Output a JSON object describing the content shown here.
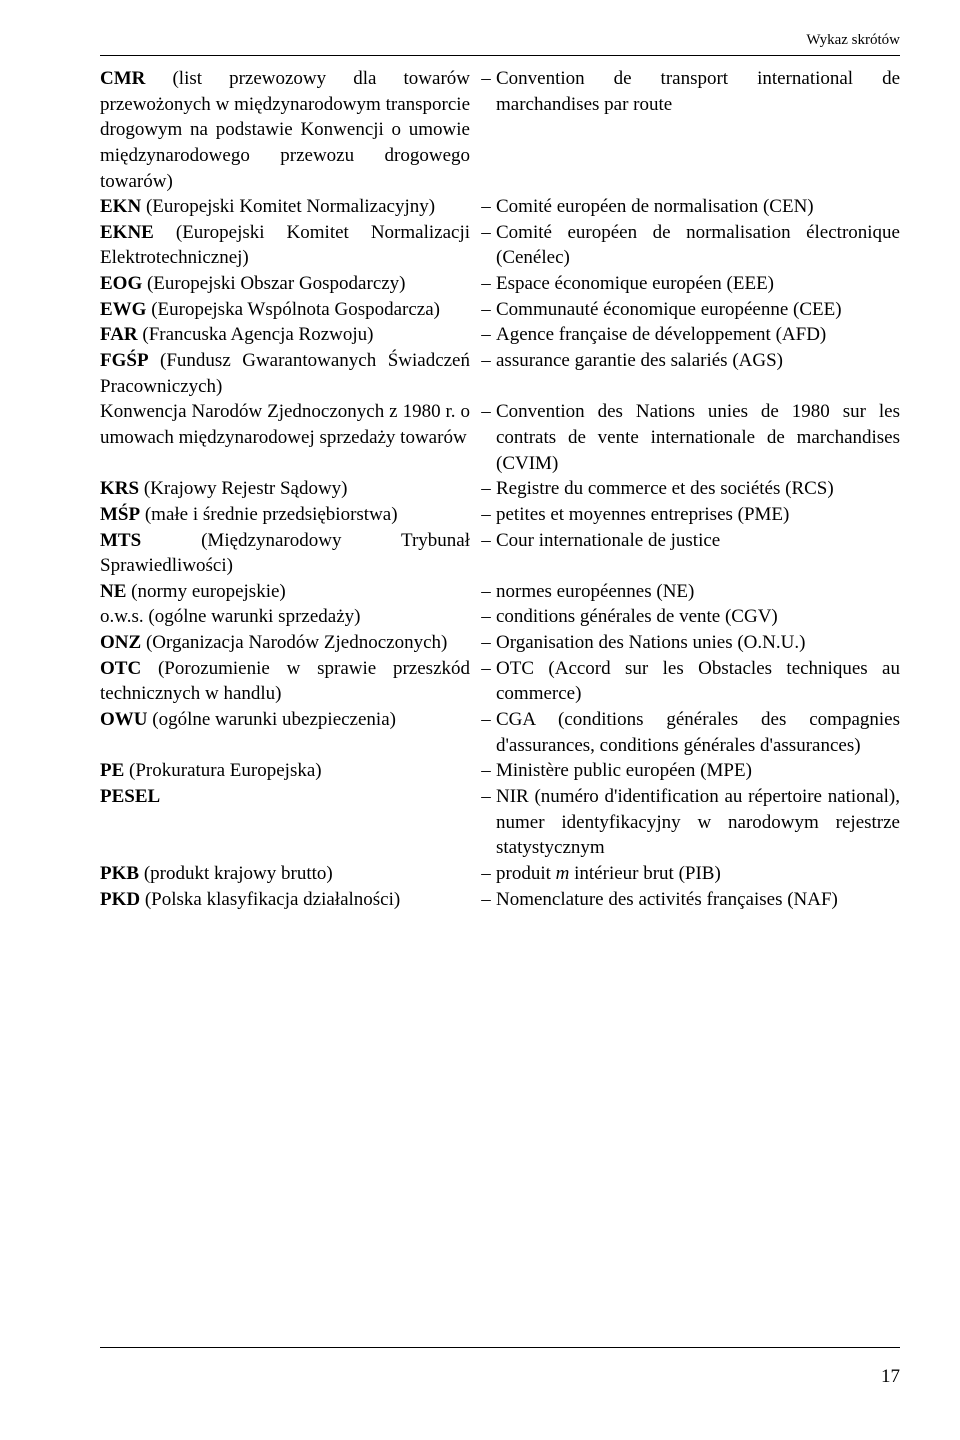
{
  "header": "Wykaz skrótów",
  "pageNumber": "17",
  "rows": [
    {
      "leftBold": "CMR",
      "leftRest": " (list przewozowy dla towarów przewożonych w międzynarodowym transporcie drogowym na podstawie Konwencji o umowie międzynarodowego przewozu drogowego towarów)",
      "right": "Convention de transport international de marchandises par route"
    },
    {
      "leftBold": "EKN",
      "leftRest": " (Europejski Komitet Normalizacyjny)",
      "right": "Comité européen de normalisation (CEN)"
    },
    {
      "leftBold": "EKNE",
      "leftRest": " (Europejski Komitet Normalizacji Elektrotechnicznej)",
      "right": "Comité européen de normalisation électronique (Cenélec)"
    },
    {
      "leftBold": "EOG",
      "leftRest": " (Europejski Obszar Gospodarczy)",
      "right": "Espace économique européen (EEE)"
    },
    {
      "leftBold": "EWG",
      "leftRest": " (Europejska Wspólnota Gospodarcza)",
      "right": "Communauté économique européenne (CEE)"
    },
    {
      "leftBold": "FAR",
      "leftRest": " (Francuska Agencja Rozwoju)",
      "right": "Agence française de développement (AFD)"
    },
    {
      "leftBold": "FGŚP",
      "leftRest": " (Fundusz Gwarantowanych Świadczeń Pracowniczych)",
      "right": "assurance garantie des salariés (AGS)"
    },
    {
      "leftBold": "",
      "leftRest": "Konwencja Narodów Zjednoczonych z 1980 r. o umowach międzynarodowej sprzedaży towarów",
      "right": "Convention des Nations unies de 1980 sur les contrats de vente internationale de marchandises (CVIM)"
    },
    {
      "leftBold": "KRS",
      "leftRest": " (Krajowy Rejestr Sądowy)",
      "right": "Registre du commerce et des sociétés (RCS)"
    },
    {
      "leftBold": "MŚP",
      "leftRest": " (małe i średnie przedsiębiorstwa)",
      "right": "petites et moyennes entreprises (PME)"
    },
    {
      "leftBold": "MTS",
      "leftRest": " (Międzynarodowy Trybunał Sprawiedliwości)",
      "right": "Cour internationale de justice"
    },
    {
      "leftBold": "NE",
      "leftRest": " (normy europejskie)",
      "right": "normes européennes (NE)"
    },
    {
      "leftBold": "",
      "leftRest": "o.w.s. (ogólne warunki sprzedaży)",
      "right": "conditions générales de vente (CGV)"
    },
    {
      "leftBold": "ONZ",
      "leftRest": " (Organizacja Narodów Zjednoczonych)",
      "right": "Organisation des Nations unies (O.N.U.)"
    },
    {
      "leftBold": "OTC",
      "leftRest": " (Porozumienie w sprawie przeszkód technicznych w handlu)",
      "right": "OTC (Accord sur les Obstacles techniques au commerce)"
    },
    {
      "leftBold": "OWU",
      "leftRest": " (ogólne warunki ubezpieczenia)",
      "right": "CGA (conditions générales des compagnies d'assurances, conditions générales d'assurances)"
    },
    {
      "leftBold": "PE",
      "leftRest": " (Prokuratura Europejska)",
      "right": "Ministère public européen (MPE)"
    },
    {
      "leftBold": "PESEL",
      "leftRest": "",
      "right": "NIR (numéro d'identification au répertoire national), numer identyfikacyjny w narodowym rejestrze statystycznym"
    },
    {
      "leftBold": "PKB",
      "leftRest": " (produkt krajowy brutto)",
      "rightHtml": "produit <span class=\"it\">m</span> intérieur brut (PIB)"
    },
    {
      "leftBold": "PKD",
      "leftRest": " (Polska klasyfikacja działalności)",
      "right": "Nomenclature des activités françaises (NAF)"
    }
  ]
}
